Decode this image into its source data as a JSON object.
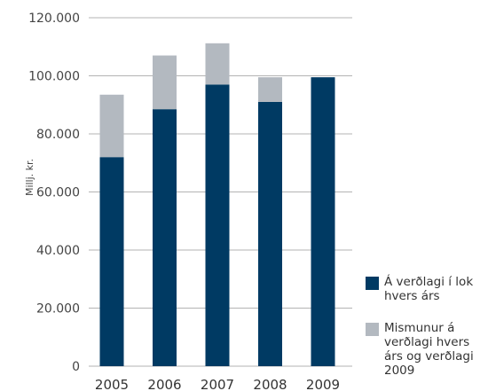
{
  "chart_data": {
    "type": "bar",
    "stacked": true,
    "categories": [
      "2005",
      "2006",
      "2007",
      "2008",
      "2009"
    ],
    "series": [
      {
        "name": "Á verðlagi í lok hvers árs",
        "color": "#003a63",
        "values": [
          72000,
          88500,
          97000,
          91000,
          99500
        ]
      },
      {
        "name": "Mismunur á verðlagi hvers árs og verðlagi 2009",
        "color": "#b3b9c0",
        "values": [
          21500,
          18500,
          14200,
          8500,
          0
        ]
      }
    ],
    "ylabel": "Millj. kr.",
    "ylim": [
      0,
      120000
    ],
    "yticks": [
      "0",
      "20.000",
      "40.000",
      "60.000",
      "80.000",
      "100.000",
      "120.000"
    ],
    "grid": true,
    "legend_position": "right"
  }
}
